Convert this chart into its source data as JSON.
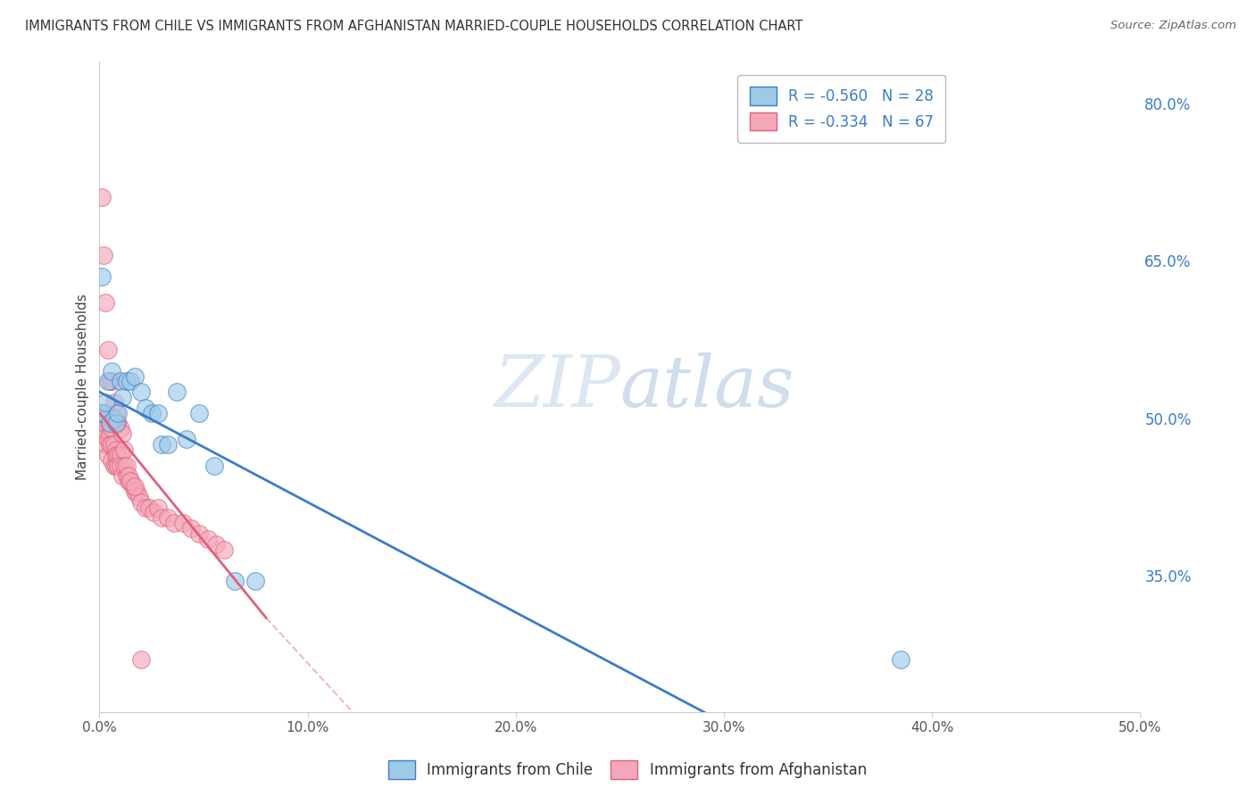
{
  "title": "IMMIGRANTS FROM CHILE VS IMMIGRANTS FROM AFGHANISTAN MARRIED-COUPLE HOUSEHOLDS CORRELATION CHART",
  "source": "Source: ZipAtlas.com",
  "ylabel": "Married-couple Households",
  "legend_labels": [
    "Immigrants from Chile",
    "Immigrants from Afghanistan"
  ],
  "r_chile": -0.56,
  "n_chile": 28,
  "r_afghan": -0.334,
  "n_afghan": 67,
  "color_chile": "#9ECAE8",
  "color_afghan": "#F4A7B9",
  "color_chile_line": "#3A7DC9",
  "color_afghan_line": "#E0607A",
  "watermark_zip": "ZIP",
  "watermark_atlas": "atlas",
  "xlim": [
    0.0,
    0.5
  ],
  "ylim": [
    0.22,
    0.84
  ],
  "xtick_vals": [
    0.0,
    0.1,
    0.2,
    0.3,
    0.4,
    0.5
  ],
  "xtick_labels": [
    "0.0%",
    "10.0%",
    "20.0%",
    "30.0%",
    "40.0%",
    "50.0%"
  ],
  "yticks_right": [
    0.35,
    0.5,
    0.65,
    0.8
  ],
  "ytick_labels_right": [
    "35.0%",
    "50.0%",
    "65.0%",
    "80.0%"
  ],
  "chile_x": [
    0.001,
    0.002,
    0.003,
    0.004,
    0.005,
    0.006,
    0.007,
    0.008,
    0.009,
    0.01,
    0.011,
    0.013,
    0.015,
    0.017,
    0.02,
    0.022,
    0.025,
    0.028,
    0.03,
    0.033,
    0.037,
    0.042,
    0.048,
    0.055,
    0.065,
    0.075,
    0.001,
    0.385
  ],
  "chile_y": [
    0.505,
    0.505,
    0.515,
    0.535,
    0.495,
    0.545,
    0.5,
    0.495,
    0.505,
    0.535,
    0.52,
    0.535,
    0.535,
    0.54,
    0.525,
    0.51,
    0.505,
    0.505,
    0.475,
    0.475,
    0.525,
    0.48,
    0.505,
    0.455,
    0.345,
    0.345,
    0.635,
    0.27
  ],
  "afghan_x": [
    0.001,
    0.001,
    0.001,
    0.002,
    0.002,
    0.002,
    0.003,
    0.003,
    0.003,
    0.004,
    0.004,
    0.004,
    0.005,
    0.005,
    0.005,
    0.006,
    0.006,
    0.006,
    0.007,
    0.007,
    0.008,
    0.008,
    0.008,
    0.009,
    0.009,
    0.01,
    0.01,
    0.011,
    0.012,
    0.013,
    0.014,
    0.015,
    0.016,
    0.017,
    0.018,
    0.019,
    0.02,
    0.022,
    0.024,
    0.026,
    0.028,
    0.03,
    0.033,
    0.036,
    0.04,
    0.044,
    0.048,
    0.052,
    0.056,
    0.06,
    0.001,
    0.002,
    0.003,
    0.004,
    0.005,
    0.006,
    0.007,
    0.008,
    0.009,
    0.01,
    0.011,
    0.012,
    0.013,
    0.014,
    0.015,
    0.017,
    0.02
  ],
  "afghan_y": [
    0.505,
    0.495,
    0.485,
    0.5,
    0.495,
    0.485,
    0.505,
    0.495,
    0.475,
    0.5,
    0.48,
    0.465,
    0.495,
    0.485,
    0.475,
    0.49,
    0.475,
    0.46,
    0.475,
    0.455,
    0.47,
    0.465,
    0.455,
    0.465,
    0.455,
    0.465,
    0.455,
    0.445,
    0.455,
    0.445,
    0.44,
    0.44,
    0.435,
    0.43,
    0.43,
    0.425,
    0.42,
    0.415,
    0.415,
    0.41,
    0.415,
    0.405,
    0.405,
    0.4,
    0.4,
    0.395,
    0.39,
    0.385,
    0.38,
    0.375,
    0.71,
    0.655,
    0.61,
    0.565,
    0.535,
    0.535,
    0.515,
    0.505,
    0.495,
    0.49,
    0.485,
    0.47,
    0.455,
    0.445,
    0.44,
    0.435,
    0.27
  ]
}
